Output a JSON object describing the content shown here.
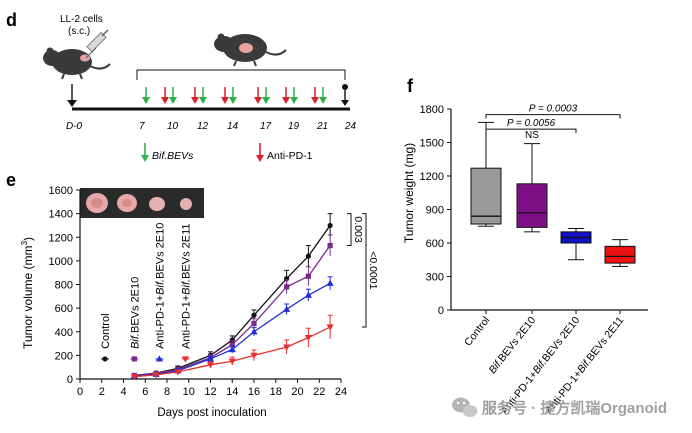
{
  "panels": {
    "d": "d",
    "e": "e",
    "f": "f"
  },
  "schedule": {
    "cell_label_line1": "LL-2 cells",
    "cell_label_line2": "(s.c.)",
    "start_day": "D-0",
    "days": [
      "7",
      "10",
      "12",
      "14",
      "17",
      "19",
      "21",
      "24"
    ],
    "legend_bevs": "Bif.BEVs",
    "legend_pd1": "Anti-PD-1",
    "colors": {
      "bevs": "#2bb34a",
      "pd1": "#d9202c",
      "axis": "#111111"
    }
  },
  "chart_data": [
    {
      "type": "line",
      "panel": "e",
      "title": "",
      "xlabel": "Days post inoculation",
      "ylabel": "Tumor volume (mm",
      "ylabel_sup": "3",
      "ylabel_end": ")",
      "xlim": [
        0,
        24
      ],
      "ylim": [
        0,
        1600
      ],
      "xticks": [
        0,
        2,
        4,
        6,
        8,
        10,
        12,
        14,
        16,
        18,
        20,
        22,
        24
      ],
      "yticks": [
        0,
        200,
        400,
        600,
        800,
        1000,
        1200,
        1400,
        1600
      ],
      "series": [
        {
          "name": "Control",
          "color": "#111111",
          "marker": "circle",
          "legend_x": 2.3,
          "legend_y": 170,
          "x": [
            5,
            7,
            9,
            12,
            14,
            16,
            19,
            21,
            23
          ],
          "y": [
            30,
            50,
            90,
            200,
            330,
            540,
            850,
            1040,
            1300
          ],
          "err": [
            15,
            15,
            20,
            30,
            35,
            45,
            70,
            90,
            100
          ]
        },
        {
          "name": "Bif.BEVs 2E10",
          "color": "#7a2a8c",
          "marker": "square",
          "legend_x": 5,
          "legend_y": 170,
          "x": [
            5,
            7,
            9,
            12,
            14,
            16,
            19,
            21,
            23
          ],
          "y": [
            30,
            45,
            80,
            180,
            290,
            470,
            780,
            870,
            1130
          ],
          "err": [
            15,
            15,
            20,
            25,
            35,
            40,
            60,
            80,
            90
          ]
        },
        {
          "name": "Anti-PD-1+Bif.BEVs 2E10",
          "color": "#1f2fd6",
          "marker": "triangle-up",
          "legend_x": 7.3,
          "legend_y": 170,
          "x": [
            5,
            7,
            9,
            12,
            14,
            16,
            19,
            21,
            23
          ],
          "y": [
            25,
            40,
            70,
            170,
            250,
            400,
            590,
            710,
            810
          ],
          "err": [
            12,
            12,
            15,
            20,
            30,
            35,
            45,
            50,
            55
          ]
        },
        {
          "name": "Anti-PD-1+Bif.BEVs 2E11",
          "color": "#e8302c",
          "marker": "triangle-down",
          "legend_x": 9.7,
          "legend_y": 170,
          "x": [
            5,
            7,
            9,
            12,
            14,
            16,
            19,
            21,
            23
          ],
          "y": [
            20,
            35,
            60,
            120,
            150,
            200,
            270,
            350,
            440
          ],
          "err": [
            10,
            12,
            15,
            25,
            35,
            45,
            60,
            80,
            100
          ]
        }
      ],
      "annotations": [
        {
          "text": "0.003",
          "from": 1130,
          "to": 1400
        },
        {
          "text": "<0.0001",
          "from": 440,
          "to": 1400
        }
      ]
    },
    {
      "type": "box",
      "panel": "f",
      "title": "",
      "xlabel": "",
      "ylabel": "Tumor weight (mg)",
      "ylim": [
        0,
        1800
      ],
      "yticks": [
        0,
        300,
        600,
        900,
        1200,
        1500,
        1800
      ],
      "categories": [
        "Control",
        "Bif.BEVs 2E10",
        "Anti-PD-1+Bif.BEVs 2E10",
        "Anti-PD-1+Bif.BEVs 2E11"
      ],
      "boxes": [
        {
          "name": "Control",
          "min": 750,
          "q1": 770,
          "median": 840,
          "q3": 1270,
          "max": 1680,
          "color": "#999999"
        },
        {
          "name": "Bif.BEVs 2E10",
          "min": 700,
          "q1": 740,
          "median": 870,
          "q3": 1130,
          "max": 1490,
          "color": "#7f0f86"
        },
        {
          "name": "Anti-PD-1+Bif.BEVs 2E10",
          "min": 450,
          "q1": 600,
          "median": 650,
          "q3": 700,
          "max": 730,
          "color": "#1010c8"
        },
        {
          "name": "Anti-PD-1+Bif.BEVs 2E11",
          "min": 390,
          "q1": 420,
          "median": 480,
          "q3": 570,
          "max": 630,
          "color": "#ee1111"
        }
      ],
      "annotations": [
        {
          "text": "P = 0.0003",
          "from": 0,
          "to": 3,
          "level": 1750
        },
        {
          "text": "P = 0.0056",
          "from": 0,
          "to": 2,
          "level": 1620
        },
        {
          "text": "NS",
          "at": 1,
          "level": 1540
        }
      ]
    }
  ],
  "watermark": "服务号 · 捷方凯瑞Organoid"
}
